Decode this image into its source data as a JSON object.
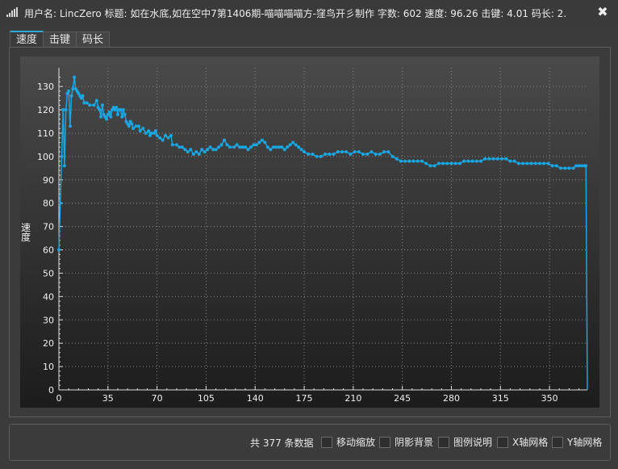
{
  "window": {
    "title": "用户名: LincZero 标题: 如在水底,如在空中7第1406期-喵喵喵喵方-窪鸟开彡制作 字数: 602 速度: 96.26 击键: 4.01 码长: 2.",
    "close_glyph": "✖"
  },
  "tabs": [
    {
      "label": "速度",
      "active": true
    },
    {
      "label": "击键",
      "active": false
    },
    {
      "label": "码长",
      "active": false
    }
  ],
  "footer": {
    "count_text": "共 377 条数据",
    "options": [
      {
        "label": "移动缩放",
        "checked": false
      },
      {
        "label": "阴影背景",
        "checked": false
      },
      {
        "label": "图例说明",
        "checked": false
      },
      {
        "label": "X轴网格",
        "checked": false
      },
      {
        "label": "Y轴网格",
        "checked": false
      }
    ]
  },
  "colors": {
    "series": "#1aa6e0",
    "grid": "#8a8a8a",
    "axis_text": "#f0f0f0"
  },
  "chart_data": {
    "type": "line",
    "title": "",
    "xlabel": "",
    "ylabel": "速度",
    "xlim": [
      0,
      377
    ],
    "ylim": [
      0,
      138
    ],
    "x_ticks": [
      0,
      35,
      70,
      105,
      140,
      175,
      210,
      245,
      280,
      315,
      350
    ],
    "y_ticks": [
      0,
      10,
      20,
      30,
      40,
      50,
      60,
      70,
      80,
      90,
      100,
      110,
      120,
      130
    ],
    "grid": true,
    "series": [
      {
        "points": [
          [
            0,
            60
          ],
          [
            1,
            80
          ],
          [
            2,
            100
          ],
          [
            3,
            120
          ],
          [
            4,
            96
          ],
          [
            5,
            120
          ],
          [
            6,
            127
          ],
          [
            7,
            128
          ],
          [
            8,
            113
          ],
          [
            9,
            126
          ],
          [
            10,
            129
          ],
          [
            11,
            134
          ],
          [
            12,
            129
          ],
          [
            13,
            128
          ],
          [
            14,
            127
          ],
          [
            15,
            126
          ],
          [
            16,
            125
          ],
          [
            17,
            126
          ],
          [
            18,
            123
          ],
          [
            20,
            123
          ],
          [
            22,
            122
          ],
          [
            25,
            122
          ],
          [
            27,
            124
          ],
          [
            28,
            121
          ],
          [
            29,
            120
          ],
          [
            30,
            117
          ],
          [
            31,
            122
          ],
          [
            32,
            118
          ],
          [
            33,
            117
          ],
          [
            34,
            116
          ],
          [
            35,
            118
          ],
          [
            36,
            119
          ],
          [
            37,
            117
          ],
          [
            38,
            120
          ],
          [
            39,
            121
          ],
          [
            40,
            120
          ],
          [
            41,
            121
          ],
          [
            42,
            118
          ],
          [
            43,
            120
          ],
          [
            44,
            120
          ],
          [
            45,
            117
          ],
          [
            46,
            120
          ],
          [
            47,
            118
          ],
          [
            48,
            115
          ],
          [
            49,
            114
          ],
          [
            50,
            113
          ],
          [
            51,
            115
          ],
          [
            52,
            114
          ],
          [
            53,
            112
          ],
          [
            55,
            113
          ],
          [
            57,
            113
          ],
          [
            58,
            111
          ],
          [
            60,
            112
          ],
          [
            62,
            110
          ],
          [
            64,
            111
          ],
          [
            65,
            109
          ],
          [
            66,
            110
          ],
          [
            68,
            110
          ],
          [
            69,
            111
          ],
          [
            70,
            109
          ],
          [
            72,
            108
          ],
          [
            74,
            107
          ],
          [
            76,
            109
          ],
          [
            78,
            108
          ],
          [
            80,
            109
          ],
          [
            81,
            105
          ],
          [
            84,
            105
          ],
          [
            86,
            104
          ],
          [
            88,
            104
          ],
          [
            90,
            103
          ],
          [
            92,
            102
          ],
          [
            94,
            103
          ],
          [
            96,
            101
          ],
          [
            98,
            102
          ],
          [
            100,
            101
          ],
          [
            102,
            103
          ],
          [
            104,
            102
          ],
          [
            106,
            103
          ],
          [
            108,
            104
          ],
          [
            110,
            103
          ],
          [
            112,
            103
          ],
          [
            114,
            104
          ],
          [
            116,
            105
          ],
          [
            118,
            107
          ],
          [
            120,
            105
          ],
          [
            122,
            104
          ],
          [
            125,
            104
          ],
          [
            127,
            105
          ],
          [
            129,
            104
          ],
          [
            131,
            104
          ],
          [
            133,
            104
          ],
          [
            135,
            103
          ],
          [
            137,
            104
          ],
          [
            139,
            105
          ],
          [
            141,
            105
          ],
          [
            143,
            106
          ],
          [
            145,
            107
          ],
          [
            147,
            106
          ],
          [
            149,
            104
          ],
          [
            151,
            103
          ],
          [
            153,
            104
          ],
          [
            155,
            104
          ],
          [
            157,
            104
          ],
          [
            159,
            104
          ],
          [
            161,
            103
          ],
          [
            163,
            104
          ],
          [
            165,
            105
          ],
          [
            167,
            106
          ],
          [
            169,
            105
          ],
          [
            171,
            104
          ],
          [
            173,
            103
          ],
          [
            175,
            102
          ],
          [
            178,
            101
          ],
          [
            181,
            101
          ],
          [
            184,
            100
          ],
          [
            187,
            100
          ],
          [
            190,
            101
          ],
          [
            193,
            101
          ],
          [
            196,
            101
          ],
          [
            199,
            102
          ],
          [
            202,
            102
          ],
          [
            205,
            102
          ],
          [
            208,
            101
          ],
          [
            211,
            102
          ],
          [
            214,
            102
          ],
          [
            217,
            101
          ],
          [
            220,
            101
          ],
          [
            223,
            102
          ],
          [
            226,
            101
          ],
          [
            229,
            101
          ],
          [
            232,
            102
          ],
          [
            235,
            102
          ],
          [
            238,
            100
          ],
          [
            241,
            99
          ],
          [
            244,
            98
          ],
          [
            247,
            98
          ],
          [
            250,
            98
          ],
          [
            253,
            98
          ],
          [
            256,
            98
          ],
          [
            259,
            98
          ],
          [
            262,
            97
          ],
          [
            265,
            96
          ],
          [
            268,
            96
          ],
          [
            271,
            97
          ],
          [
            274,
            97
          ],
          [
            277,
            97
          ],
          [
            280,
            97
          ],
          [
            283,
            97
          ],
          [
            286,
            97
          ],
          [
            289,
            98
          ],
          [
            292,
            98
          ],
          [
            295,
            98
          ],
          [
            298,
            98
          ],
          [
            301,
            98
          ],
          [
            304,
            99
          ],
          [
            307,
            99
          ],
          [
            310,
            99
          ],
          [
            313,
            99
          ],
          [
            316,
            99
          ],
          [
            319,
            99
          ],
          [
            322,
            98
          ],
          [
            325,
            98
          ],
          [
            328,
            97
          ],
          [
            331,
            97
          ],
          [
            334,
            97
          ],
          [
            337,
            97
          ],
          [
            340,
            97
          ],
          [
            343,
            97
          ],
          [
            346,
            97
          ],
          [
            349,
            97
          ],
          [
            352,
            96
          ],
          [
            355,
            96
          ],
          [
            358,
            95
          ],
          [
            361,
            95
          ],
          [
            364,
            95
          ],
          [
            367,
            95
          ],
          [
            369,
            96
          ],
          [
            371,
            96
          ],
          [
            373,
            96
          ],
          [
            375,
            96
          ],
          [
            376,
            96
          ],
          [
            377,
            0
          ]
        ]
      }
    ]
  }
}
